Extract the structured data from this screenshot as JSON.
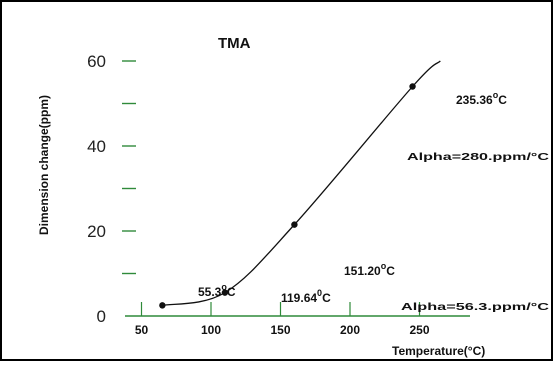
{
  "chart_data": {
    "type": "line",
    "title": "TMA",
    "xlabel": "Temperature(°C)",
    "ylabel": "Dimension change(ppm)",
    "xlim": [
      0,
      270
    ],
    "ylim": [
      0,
      65
    ],
    "x_ticks": [
      50,
      100,
      150,
      200,
      250
    ],
    "y_ticks": [
      0,
      20,
      40,
      60
    ],
    "y_minor_ticks": [
      10,
      30,
      50
    ],
    "grid": false,
    "series": [
      {
        "values_x": [
          65,
          110,
          160,
          245,
          265
        ],
        "values_y": [
          2.5,
          5.5,
          21.5,
          54,
          60
        ]
      }
    ],
    "markers": [
      {
        "x": 65,
        "y": 2.5
      },
      {
        "x": 110,
        "y": 5.5
      },
      {
        "x": 160,
        "y": 21.5
      },
      {
        "x": 245,
        "y": 54
      }
    ],
    "annotations": {
      "t1": {
        "value": "55.3",
        "unit": "C"
      },
      "t2": {
        "value": "119.64",
        "unit": "C"
      },
      "t3": {
        "value": "151.20",
        "unit": "C"
      },
      "t4": {
        "value": "235.36",
        "unit": "C"
      },
      "alpha_high": "Alpha=280.ppm/°C",
      "alpha_low": "Alpha=56.3.ppm/°C"
    },
    "colors": {
      "axis": "#2f8a3a",
      "line": "#111111",
      "frame": "#000000"
    }
  }
}
